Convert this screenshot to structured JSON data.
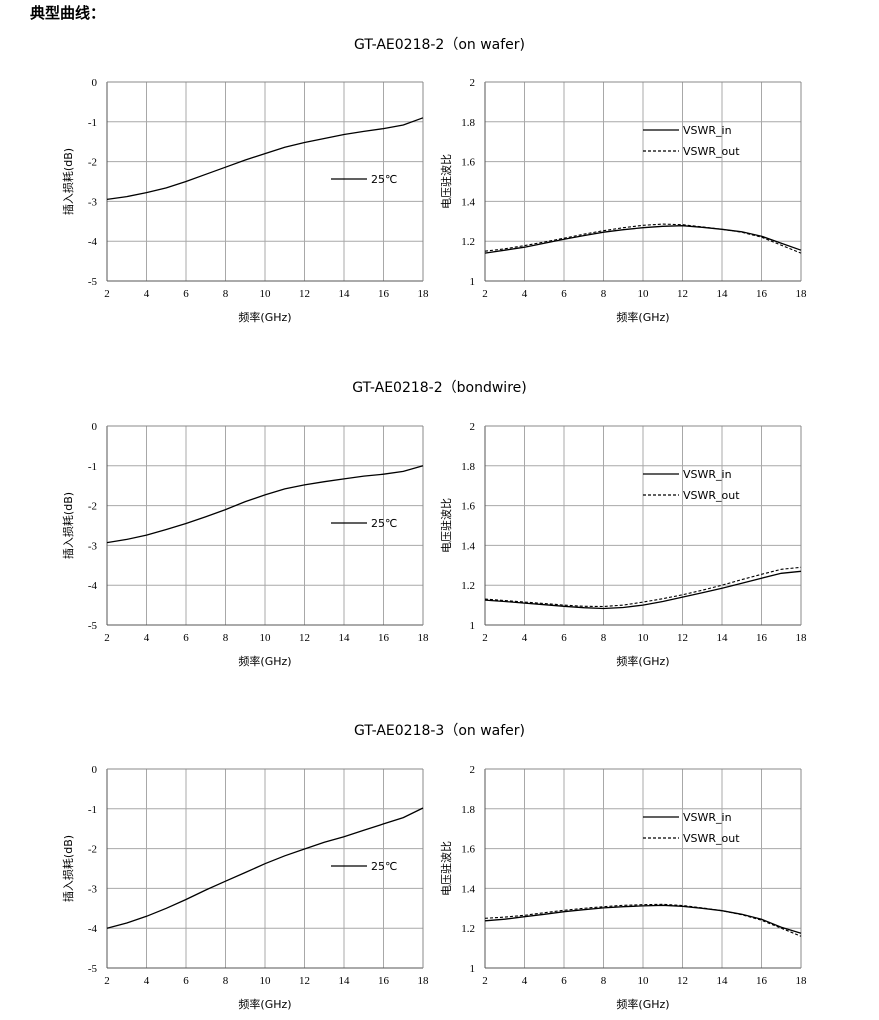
{
  "page": {
    "title": "典型曲线："
  },
  "sections": [
    {
      "title": "GT-AE0218-2（on wafer)",
      "charts": [
        {
          "type": "line",
          "xlabel": "频率(GHz)",
          "ylabel": "插入损耗(dB)",
          "xlim": [
            2,
            18
          ],
          "ylim": [
            -5,
            0
          ],
          "x_ticks": [
            "2",
            "4",
            "6",
            "8",
            "10",
            "12",
            "14",
            "16",
            "18"
          ],
          "y_ticks": [
            "0",
            "-1",
            "-2",
            "-3",
            "-4",
            "-5"
          ],
          "legend_position": "center-right",
          "series": [
            {
              "name": "25℃",
              "style": "solid",
              "x": [
                2,
                3,
                4,
                5,
                6,
                7,
                8,
                9,
                10,
                11,
                12,
                13,
                14,
                15,
                16,
                17,
                18
              ],
              "y": [
                -2.95,
                -2.88,
                -2.78,
                -2.66,
                -2.5,
                -2.32,
                -2.14,
                -1.96,
                -1.8,
                -1.64,
                -1.52,
                -1.42,
                -1.32,
                -1.24,
                -1.17,
                -1.08,
                -0.9
              ]
            }
          ]
        },
        {
          "type": "line",
          "xlabel": "频率(GHz)",
          "ylabel": "电压驻波比",
          "xlim": [
            2,
            18
          ],
          "ylim": [
            1,
            2
          ],
          "x_ticks": [
            "2",
            "4",
            "6",
            "8",
            "10",
            "12",
            "14",
            "16",
            "18"
          ],
          "y_ticks": [
            "2",
            "1.8",
            "1.6",
            "1.4",
            "1.2",
            "1"
          ],
          "legend_position": "top-right",
          "series": [
            {
              "name": "VSWR_in",
              "style": "solid",
              "x": [
                2,
                3,
                4,
                5,
                6,
                7,
                8,
                9,
                10,
                11,
                12,
                13,
                14,
                15,
                16,
                17,
                18
              ],
              "y": [
                1.14,
                1.155,
                1.17,
                1.19,
                1.21,
                1.228,
                1.245,
                1.258,
                1.268,
                1.275,
                1.278,
                1.27,
                1.26,
                1.247,
                1.225,
                1.19,
                1.155
              ]
            },
            {
              "name": "VSWR_out",
              "style": "dashed",
              "x": [
                2,
                3,
                4,
                5,
                6,
                7,
                8,
                9,
                10,
                11,
                12,
                13,
                14,
                15,
                16,
                17,
                18
              ],
              "y": [
                1.15,
                1.162,
                1.178,
                1.196,
                1.215,
                1.235,
                1.253,
                1.268,
                1.28,
                1.286,
                1.283,
                1.272,
                1.26,
                1.245,
                1.22,
                1.18,
                1.14
              ]
            }
          ]
        }
      ]
    },
    {
      "title": "GT-AE0218-2（bondwire)",
      "charts": [
        {
          "type": "line",
          "xlabel": "频率(GHz)",
          "ylabel": "插入损耗(dB)",
          "xlim": [
            2,
            18
          ],
          "ylim": [
            -5,
            0
          ],
          "x_ticks": [
            "2",
            "4",
            "6",
            "8",
            "10",
            "12",
            "14",
            "16",
            "18"
          ],
          "y_ticks": [
            "0",
            "-1",
            "-2",
            "-3",
            "-4",
            "-5"
          ],
          "legend_position": "center-right",
          "series": [
            {
              "name": "25℃",
              "style": "solid",
              "x": [
                2,
                3,
                4,
                5,
                6,
                7,
                8,
                9,
                10,
                11,
                12,
                13,
                14,
                15,
                16,
                17,
                18
              ],
              "y": [
                -2.93,
                -2.85,
                -2.74,
                -2.6,
                -2.45,
                -2.28,
                -2.1,
                -1.9,
                -1.73,
                -1.58,
                -1.48,
                -1.4,
                -1.33,
                -1.26,
                -1.21,
                -1.14,
                -1.0
              ]
            }
          ]
        },
        {
          "type": "line",
          "xlabel": "频率(GHz)",
          "ylabel": "电压驻波比",
          "xlim": [
            2,
            18
          ],
          "ylim": [
            1,
            2
          ],
          "x_ticks": [
            "2",
            "4",
            "6",
            "8",
            "10",
            "12",
            "14",
            "16",
            "18"
          ],
          "y_ticks": [
            "2",
            "1.8",
            "1.6",
            "1.4",
            "1.2",
            "1"
          ],
          "legend_position": "top-right",
          "series": [
            {
              "name": "VSWR_in",
              "style": "solid",
              "x": [
                2,
                3,
                4,
                5,
                6,
                7,
                8,
                9,
                10,
                11,
                12,
                13,
                14,
                15,
                16,
                17,
                18
              ],
              "y": [
                1.125,
                1.118,
                1.11,
                1.102,
                1.094,
                1.087,
                1.083,
                1.088,
                1.1,
                1.118,
                1.14,
                1.162,
                1.185,
                1.21,
                1.235,
                1.26,
                1.27
              ]
            },
            {
              "name": "VSWR_out",
              "style": "dashed",
              "x": [
                2,
                3,
                4,
                5,
                6,
                7,
                8,
                9,
                10,
                11,
                12,
                13,
                14,
                15,
                16,
                17,
                18
              ],
              "y": [
                1.13,
                1.123,
                1.115,
                1.108,
                1.1,
                1.094,
                1.093,
                1.1,
                1.115,
                1.132,
                1.152,
                1.175,
                1.2,
                1.228,
                1.255,
                1.28,
                1.29
              ]
            }
          ]
        }
      ]
    },
    {
      "title": "GT-AE0218-3（on wafer)",
      "charts": [
        {
          "type": "line",
          "xlabel": "频率(GHz)",
          "ylabel": "插入损耗(dB)",
          "xlim": [
            2,
            18
          ],
          "ylim": [
            -5,
            0
          ],
          "x_ticks": [
            "2",
            "4",
            "6",
            "8",
            "10",
            "12",
            "14",
            "16",
            "18"
          ],
          "y_ticks": [
            "0",
            "-1",
            "-2",
            "-3",
            "-4",
            "-5"
          ],
          "legend_position": "center-right",
          "series": [
            {
              "name": "25℃",
              "style": "solid",
              "x": [
                2,
                3,
                4,
                5,
                6,
                7,
                8,
                9,
                10,
                11,
                12,
                13,
                14,
                15,
                16,
                17,
                18
              ],
              "y": [
                -4.0,
                -3.87,
                -3.7,
                -3.5,
                -3.28,
                -3.04,
                -2.82,
                -2.6,
                -2.38,
                -2.18,
                -2.01,
                -1.84,
                -1.7,
                -1.54,
                -1.38,
                -1.22,
                -0.98
              ]
            }
          ]
        },
        {
          "type": "line",
          "xlabel": "频率(GHz)",
          "ylabel": "电压驻波比",
          "xlim": [
            2,
            18
          ],
          "ylim": [
            1,
            2
          ],
          "x_ticks": [
            "2",
            "4",
            "6",
            "8",
            "10",
            "12",
            "14",
            "16",
            "18"
          ],
          "y_ticks": [
            "2",
            "1.8",
            "1.6",
            "1.4",
            "1.2",
            "1"
          ],
          "legend_position": "top-right",
          "series": [
            {
              "name": "VSWR_in",
              "style": "solid",
              "x": [
                2,
                3,
                4,
                5,
                6,
                7,
                8,
                9,
                10,
                11,
                12,
                13,
                14,
                15,
                16,
                17,
                18
              ],
              "y": [
                1.237,
                1.245,
                1.258,
                1.27,
                1.283,
                1.293,
                1.302,
                1.308,
                1.312,
                1.315,
                1.31,
                1.3,
                1.288,
                1.27,
                1.245,
                1.205,
                1.175
              ]
            },
            {
              "name": "VSWR_out",
              "style": "dashed",
              "x": [
                2,
                3,
                4,
                5,
                6,
                7,
                8,
                9,
                10,
                11,
                12,
                13,
                14,
                15,
                16,
                17,
                18
              ],
              "y": [
                1.25,
                1.256,
                1.265,
                1.278,
                1.29,
                1.3,
                1.308,
                1.315,
                1.318,
                1.32,
                1.314,
                1.302,
                1.288,
                1.268,
                1.24,
                1.2,
                1.16
              ]
            }
          ]
        }
      ]
    }
  ],
  "chart_data": [
    {
      "type": "line",
      "xlabel": "频率(GHz)",
      "ylabel": "插入损耗(dB)",
      "xlim": [
        2,
        18
      ],
      "ylim": [
        -5,
        0
      ],
      "grid": true,
      "series": [
        {
          "name": "25℃",
          "x": [
            2,
            3,
            4,
            5,
            6,
            7,
            8,
            9,
            10,
            11,
            12,
            13,
            14,
            15,
            16,
            17,
            18
          ],
          "y": [
            -2.95,
            -2.88,
            -2.78,
            -2.66,
            -2.5,
            -2.32,
            -2.14,
            -1.96,
            -1.8,
            -1.64,
            -1.52,
            -1.42,
            -1.32,
            -1.24,
            -1.17,
            -1.08,
            -0.9
          ]
        }
      ]
    },
    {
      "type": "line",
      "xlabel": "频率(GHz)",
      "ylabel": "电压驻波比",
      "xlim": [
        2,
        18
      ],
      "ylim": [
        1,
        2
      ],
      "grid": true,
      "series": [
        {
          "name": "VSWR_in",
          "x": [
            2,
            3,
            4,
            5,
            6,
            7,
            8,
            9,
            10,
            11,
            12,
            13,
            14,
            15,
            16,
            17,
            18
          ],
          "y": [
            1.14,
            1.155,
            1.17,
            1.19,
            1.21,
            1.228,
            1.245,
            1.258,
            1.268,
            1.275,
            1.278,
            1.27,
            1.26,
            1.247,
            1.225,
            1.19,
            1.155
          ]
        },
        {
          "name": "VSWR_out",
          "x": [
            2,
            3,
            4,
            5,
            6,
            7,
            8,
            9,
            10,
            11,
            12,
            13,
            14,
            15,
            16,
            17,
            18
          ],
          "y": [
            1.15,
            1.162,
            1.178,
            1.196,
            1.215,
            1.235,
            1.253,
            1.268,
            1.28,
            1.286,
            1.283,
            1.272,
            1.26,
            1.245,
            1.22,
            1.18,
            1.14
          ]
        }
      ]
    },
    {
      "type": "line",
      "xlabel": "频率(GHz)",
      "ylabel": "插入损耗(dB)",
      "xlim": [
        2,
        18
      ],
      "ylim": [
        -5,
        0
      ],
      "grid": true,
      "series": [
        {
          "name": "25℃",
          "x": [
            2,
            3,
            4,
            5,
            6,
            7,
            8,
            9,
            10,
            11,
            12,
            13,
            14,
            15,
            16,
            17,
            18
          ],
          "y": [
            -2.93,
            -2.85,
            -2.74,
            -2.6,
            -2.45,
            -2.28,
            -2.1,
            -1.9,
            -1.73,
            -1.58,
            -1.48,
            -1.4,
            -1.33,
            -1.26,
            -1.21,
            -1.14,
            -1.0
          ]
        }
      ]
    },
    {
      "type": "line",
      "xlabel": "频率(GHz)",
      "ylabel": "电压驻波比",
      "xlim": [
        2,
        18
      ],
      "ylim": [
        1,
        2
      ],
      "grid": true,
      "series": [
        {
          "name": "VSWR_in",
          "x": [
            2,
            3,
            4,
            5,
            6,
            7,
            8,
            9,
            10,
            11,
            12,
            13,
            14,
            15,
            16,
            17,
            18
          ],
          "y": [
            1.125,
            1.118,
            1.11,
            1.102,
            1.094,
            1.087,
            1.083,
            1.088,
            1.1,
            1.118,
            1.14,
            1.162,
            1.185,
            1.21,
            1.235,
            1.26,
            1.27
          ]
        },
        {
          "name": "VSWR_out",
          "x": [
            2,
            3,
            4,
            5,
            6,
            7,
            8,
            9,
            10,
            11,
            12,
            13,
            14,
            15,
            16,
            17,
            18
          ],
          "y": [
            1.13,
            1.123,
            1.115,
            1.108,
            1.1,
            1.094,
            1.093,
            1.1,
            1.115,
            1.132,
            1.152,
            1.175,
            1.2,
            1.228,
            1.255,
            1.28,
            1.29
          ]
        }
      ]
    },
    {
      "type": "line",
      "xlabel": "频率(GHz)",
      "ylabel": "插入损耗(dB)",
      "xlim": [
        2,
        18
      ],
      "ylim": [
        -5,
        0
      ],
      "grid": true,
      "series": [
        {
          "name": "25℃",
          "x": [
            2,
            3,
            4,
            5,
            6,
            7,
            8,
            9,
            10,
            11,
            12,
            13,
            14,
            15,
            16,
            17,
            18
          ],
          "y": [
            -4.0,
            -3.87,
            -3.7,
            -3.5,
            -3.28,
            -3.04,
            -2.82,
            -2.6,
            -2.38,
            -2.18,
            -2.01,
            -1.84,
            -1.7,
            -1.54,
            -1.38,
            -1.22,
            -0.98
          ]
        }
      ]
    },
    {
      "type": "line",
      "xlabel": "频率(GHz)",
      "ylabel": "电压驻波比",
      "xlim": [
        2,
        18
      ],
      "ylim": [
        1,
        2
      ],
      "grid": true,
      "series": [
        {
          "name": "VSWR_in",
          "x": [
            2,
            3,
            4,
            5,
            6,
            7,
            8,
            9,
            10,
            11,
            12,
            13,
            14,
            15,
            16,
            17,
            18
          ],
          "y": [
            1.237,
            1.245,
            1.258,
            1.27,
            1.283,
            1.293,
            1.302,
            1.308,
            1.312,
            1.315,
            1.31,
            1.3,
            1.288,
            1.27,
            1.245,
            1.205,
            1.175
          ]
        },
        {
          "name": "VSWR_out",
          "x": [
            2,
            3,
            4,
            5,
            6,
            7,
            8,
            9,
            10,
            11,
            12,
            13,
            14,
            15,
            16,
            17,
            18
          ],
          "y": [
            1.25,
            1.256,
            1.265,
            1.278,
            1.29,
            1.3,
            1.308,
            1.315,
            1.318,
            1.32,
            1.314,
            1.302,
            1.288,
            1.268,
            1.24,
            1.2,
            1.16
          ]
        }
      ]
    }
  ]
}
